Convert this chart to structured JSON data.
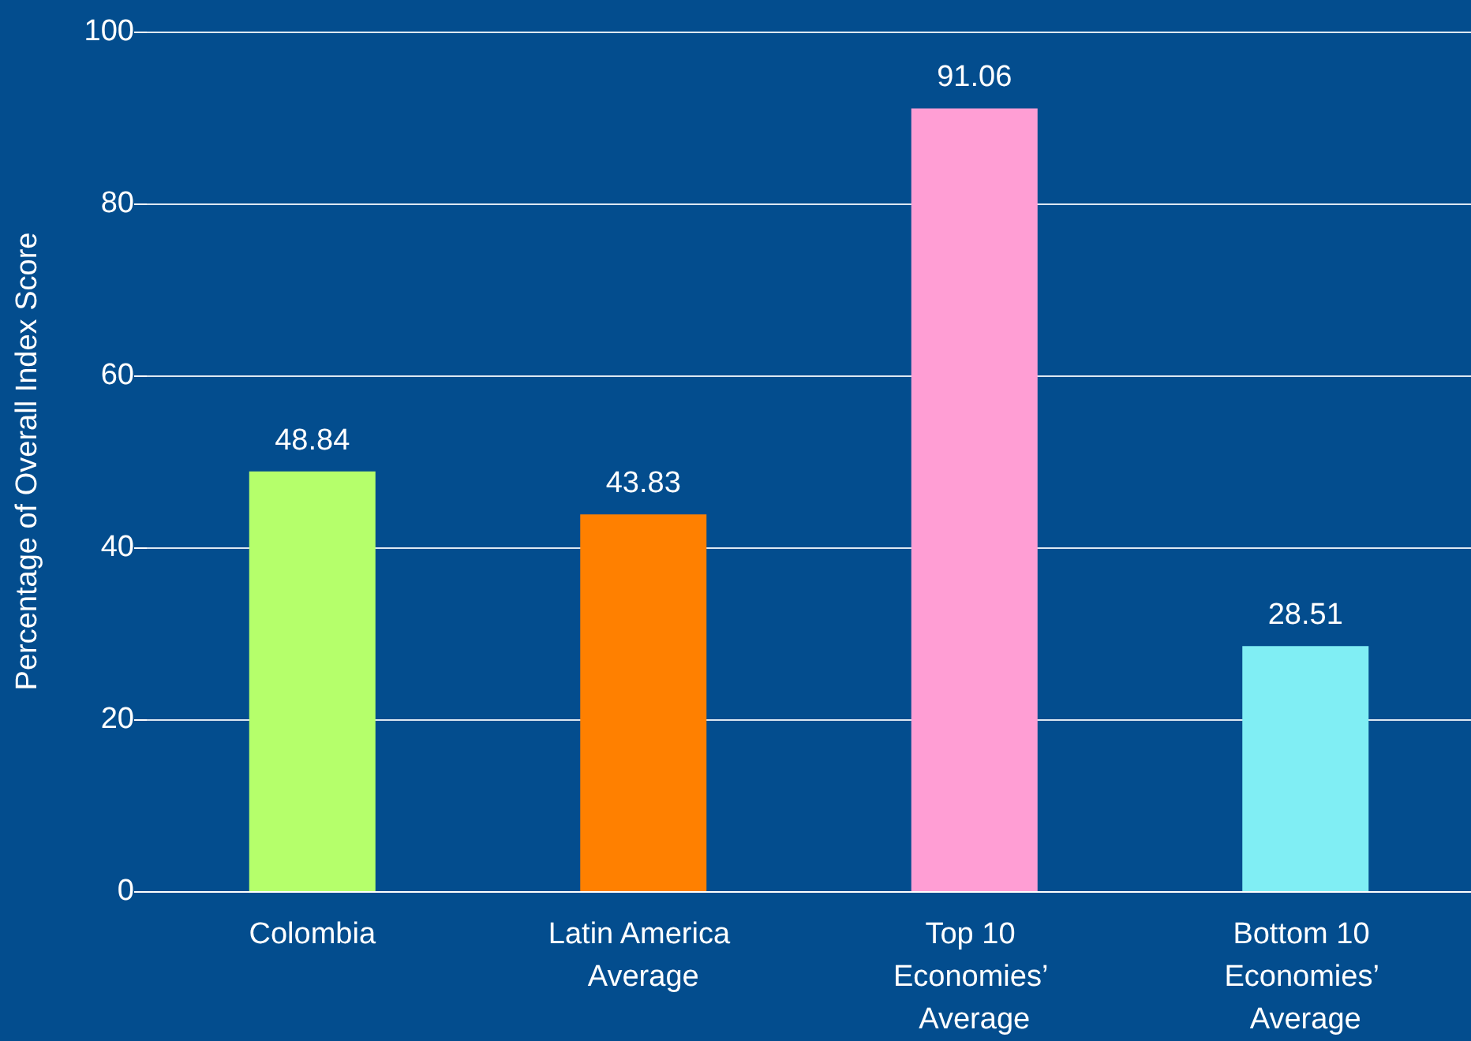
{
  "chart_data": {
    "type": "bar",
    "ylabel": "Percentage of Overall Index Score",
    "categories": [
      "Colombia",
      "Latin America Average",
      "Top 10 Economies’ Average",
      "Bottom 10 Economies’ Average"
    ],
    "values": [
      48.84,
      43.83,
      91.06,
      28.51
    ],
    "colors": [
      "#b5ff6b",
      "#ff8000",
      "#ff9ed4",
      "#80eef4"
    ],
    "ylim": [
      0,
      100
    ],
    "yticks": [
      0,
      20,
      40,
      60,
      80,
      100
    ],
    "grid": "y",
    "data_labels": true
  }
}
